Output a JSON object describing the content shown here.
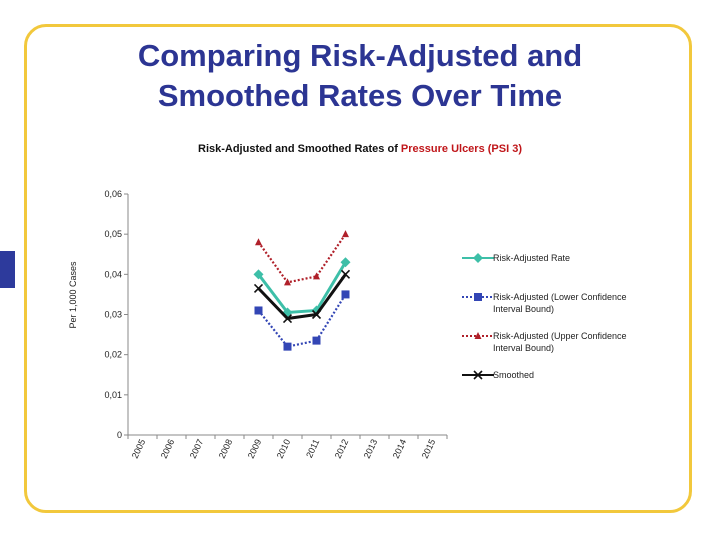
{
  "slide": {
    "title_line1": "Comparing Risk-Adjusted and",
    "title_line2": "Smoothed Rates Over Time"
  },
  "colors": {
    "title": "#2c3593",
    "frame": "#f2c83c",
    "tab": "#2d3a9c",
    "highlight": "#c0161a"
  },
  "chart_data": {
    "type": "line",
    "title_prefix": "Risk-Adjusted and Smoothed Rates of ",
    "title_highlight": "Pressure Ulcers (PSI 3)",
    "ylabel": "Per 1,000 Cases",
    "xlabel": "",
    "categories": [
      "2005",
      "2006",
      "2007",
      "2008",
      "2009",
      "2010",
      "2011",
      "2012",
      "2013",
      "2014",
      "2015"
    ],
    "y_ticks": [
      "0",
      "0,01",
      "0,02",
      "0,03",
      "0,04",
      "0,05",
      "0,06"
    ],
    "ylim": [
      0,
      0.06
    ],
    "grid": false,
    "legend_position": "right",
    "series": [
      {
        "name": "Risk-Adjusted Rate",
        "color": "#3dbfa8",
        "marker": "diamond",
        "dash": "solid",
        "values": [
          null,
          null,
          null,
          null,
          0.04,
          0.0305,
          0.031,
          0.043,
          null,
          null,
          null
        ]
      },
      {
        "name": "Risk-Adjusted (Lower Confidence Interval Bound)",
        "color": "#3346b5",
        "marker": "square",
        "dash": "dotted",
        "values": [
          null,
          null,
          null,
          null,
          0.031,
          0.022,
          0.0235,
          0.035,
          null,
          null,
          null
        ]
      },
      {
        "name": "Risk-Adjusted (Upper Confidence Interval Bound)",
        "color": "#b0202a",
        "marker": "triangle",
        "dash": "dotted",
        "values": [
          null,
          null,
          null,
          null,
          0.048,
          0.038,
          0.0395,
          0.05,
          null,
          null,
          null
        ]
      },
      {
        "name": "Smoothed",
        "color": "#111111",
        "marker": "x",
        "dash": "solid",
        "values": [
          null,
          null,
          null,
          null,
          0.0365,
          0.029,
          0.03,
          0.04,
          null,
          null,
          null
        ]
      }
    ]
  }
}
